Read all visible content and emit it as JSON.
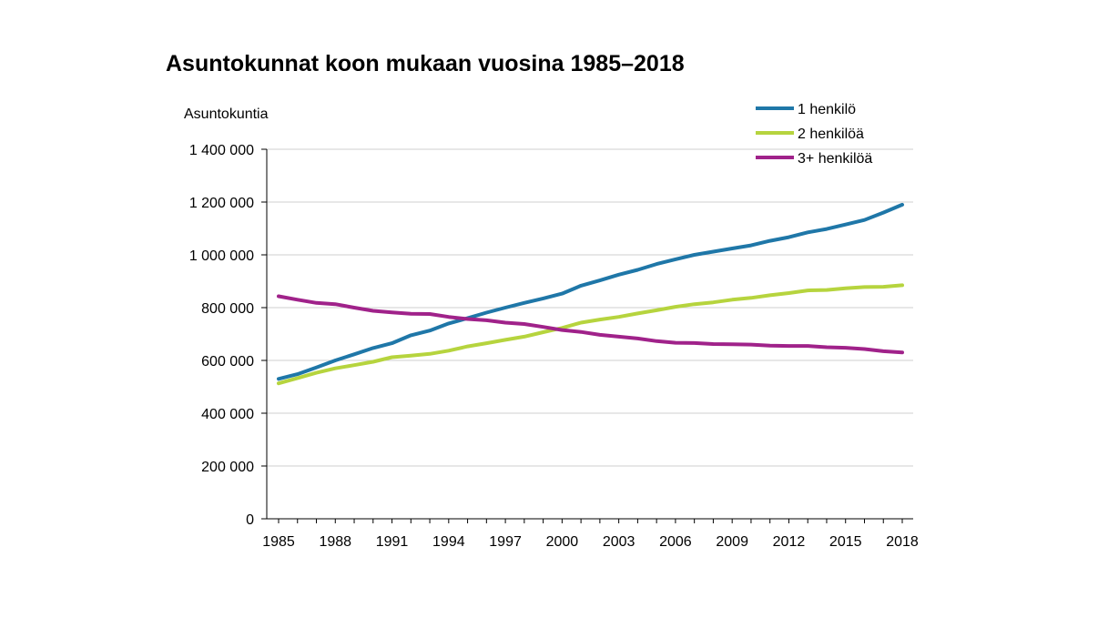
{
  "chart_data": {
    "type": "line",
    "title": "Asuntokunnat koon mukaan vuosina 1985–2018",
    "ylabel": "Asuntokuntia",
    "xlabel": "",
    "x": [
      1985,
      1986,
      1987,
      1988,
      1989,
      1990,
      1991,
      1992,
      1993,
      1994,
      1995,
      1996,
      1997,
      1998,
      1999,
      2000,
      2001,
      2002,
      2003,
      2004,
      2005,
      2006,
      2007,
      2008,
      2009,
      2010,
      2011,
      2012,
      2013,
      2014,
      2015,
      2016,
      2017,
      2018
    ],
    "x_tick_labels": [
      "1985",
      "1988",
      "1991",
      "1994",
      "1997",
      "2000",
      "2003",
      "2006",
      "2009",
      "2012",
      "2015",
      "2018"
    ],
    "x_ticks": [
      1985,
      1988,
      1991,
      1994,
      1997,
      2000,
      2003,
      2006,
      2009,
      2012,
      2015,
      2018
    ],
    "ylim": [
      0,
      1400000
    ],
    "y_ticks": [
      0,
      200000,
      400000,
      600000,
      800000,
      1000000,
      1200000,
      1400000
    ],
    "y_tick_labels": [
      "0",
      "200 000",
      "400 000",
      "600 000",
      "800 000",
      "1 000 000",
      "1 200 000",
      "1 400 000"
    ],
    "grid": "horizontal",
    "legend_position": "top-right",
    "series": [
      {
        "name": "1 henkilö",
        "color": "#1f77a8",
        "values": [
          530000,
          548000,
          573000,
          600000,
          623000,
          647000,
          665000,
          695000,
          713000,
          740000,
          760000,
          781000,
          800000,
          818000,
          835000,
          853000,
          883000,
          903000,
          925000,
          943000,
          965000,
          983000,
          1000000,
          1012000,
          1024000,
          1036000,
          1053000,
          1067000,
          1085000,
          1098000,
          1115000,
          1132000,
          1160000,
          1190000
        ]
      },
      {
        "name": "2 henkilöä",
        "color": "#b6d43e",
        "values": [
          513000,
          533000,
          553000,
          570000,
          582000,
          595000,
          612000,
          618000,
          625000,
          637000,
          653000,
          665000,
          678000,
          690000,
          707000,
          723000,
          743000,
          755000,
          765000,
          778000,
          790000,
          803000,
          813000,
          820000,
          830000,
          837000,
          847000,
          855000,
          865000,
          867000,
          873000,
          878000,
          879000,
          885000
        ]
      },
      {
        "name": "3+ henkilöä",
        "color": "#a0228a",
        "values": [
          843000,
          830000,
          818000,
          813000,
          800000,
          788000,
          782000,
          777000,
          776000,
          765000,
          757000,
          752000,
          743000,
          738000,
          727000,
          715000,
          708000,
          697000,
          690000,
          683000,
          673000,
          667000,
          666000,
          662000,
          661000,
          660000,
          656000,
          655000,
          655000,
          650000,
          648000,
          643000,
          635000,
          630000
        ]
      }
    ]
  }
}
